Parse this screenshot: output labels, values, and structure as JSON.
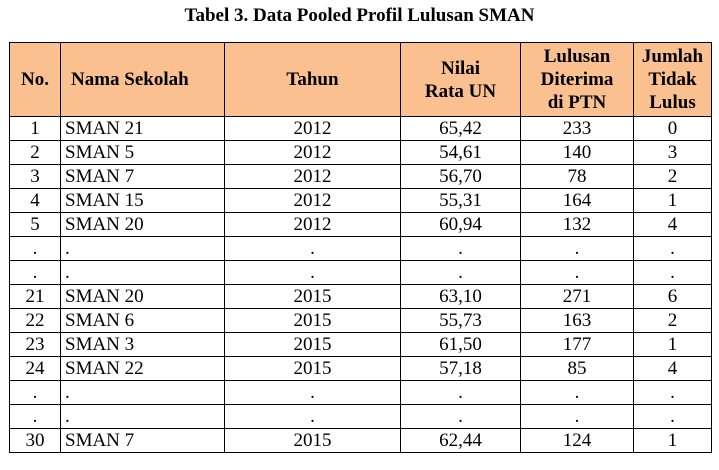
{
  "caption": "Tabel 3. Data Pooled Profil Lulusan SMAN",
  "headers": {
    "no": "No.",
    "nama": "Nama Sekolah",
    "tahun": "Tahun",
    "nilai_l1": "Nilai",
    "nilai_l2": "Rata UN",
    "lulusan_l1": "Lulusan",
    "lulusan_l2": "Diterima",
    "lulusan_l3": "di PTN",
    "jumlah_l1": "Jumlah",
    "jumlah_l2": "Tidak",
    "jumlah_l3": "Lulus"
  },
  "rows": [
    {
      "no": "1",
      "nama": "SMAN 21",
      "tahun": "2012",
      "nilai": "65,42",
      "ptn": "233",
      "tidak": "0"
    },
    {
      "no": "2",
      "nama": "SMAN 5",
      "tahun": "2012",
      "nilai": "54,61",
      "ptn": "140",
      "tidak": "3"
    },
    {
      "no": "3",
      "nama": "SMAN 7",
      "tahun": "2012",
      "nilai": "56,70",
      "ptn": "78",
      "tidak": "2"
    },
    {
      "no": "4",
      "nama": "SMAN 15",
      "tahun": "2012",
      "nilai": "55,31",
      "ptn": "164",
      "tidak": "1"
    },
    {
      "no": "5",
      "nama": "SMAN 20",
      "tahun": "2012",
      "nilai": "60,94",
      "ptn": "132",
      "tidak": "4"
    },
    {
      "no": ".",
      "nama": ".",
      "tahun": ".",
      "nilai": ".",
      "ptn": ".",
      "tidak": "."
    },
    {
      "no": ".",
      "nama": ".",
      "tahun": ".",
      "nilai": ".",
      "ptn": ".",
      "tidak": "."
    },
    {
      "no": "21",
      "nama": "SMAN 20",
      "tahun": "2015",
      "nilai": "63,10",
      "ptn": "271",
      "tidak": "6"
    },
    {
      "no": "22",
      "nama": "SMAN 6",
      "tahun": "2015",
      "nilai": "55,73",
      "ptn": "163",
      "tidak": "2"
    },
    {
      "no": "23",
      "nama": "SMAN 3",
      "tahun": "2015",
      "nilai": "61,50",
      "ptn": "177",
      "tidak": "1"
    },
    {
      "no": "24",
      "nama": "SMAN 22",
      "tahun": "2015",
      "nilai": "57,18",
      "ptn": "85",
      "tidak": "4"
    },
    {
      "no": ".",
      "nama": ".",
      "tahun": ".",
      "nilai": ".",
      "ptn": ".",
      "tidak": "."
    },
    {
      "no": ".",
      "nama": ".",
      "tahun": ".",
      "nilai": ".",
      "ptn": ".",
      "tidak": "."
    },
    {
      "no": "30",
      "nama": "SMAN 7",
      "tahun": "2015",
      "nilai": "62,44",
      "ptn": "124",
      "tidak": "1"
    }
  ],
  "colors": {
    "header_background": "#fac090"
  }
}
